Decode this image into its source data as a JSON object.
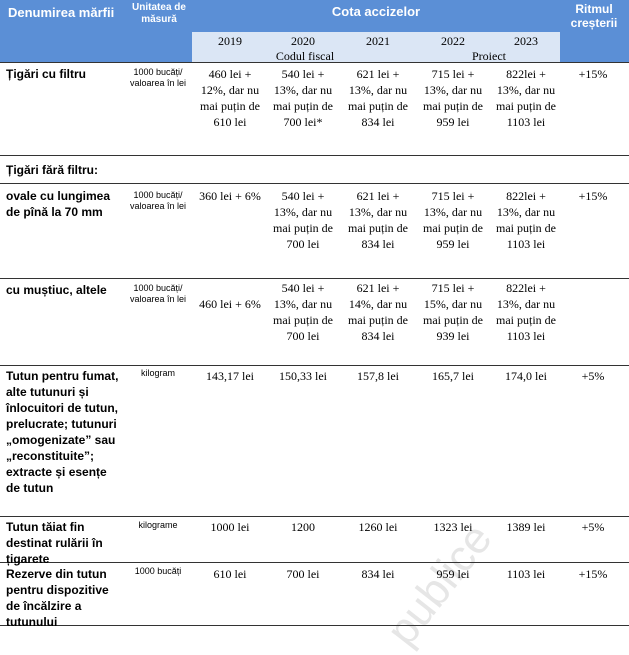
{
  "header": {
    "product": "Denumirea mărfii",
    "unit": "Unitatea de măsură",
    "rates": "Cota accizelor",
    "growth": "Ritmul creșterii",
    "years": [
      "2019",
      "2020",
      "2021",
      "2022",
      "2023"
    ],
    "fiscal_code": "Codul fiscal",
    "project": "Proiect"
  },
  "rows": [
    {
      "name": "Țigări cu filtru",
      "unit": "1000 bucăți/ valoarea în lei",
      "v": [
        "460 lei + 12%, dar nu mai puțin de 610 lei",
        "540 lei + 13%, dar nu mai puțin de 700 lei*",
        "621 lei + 13%, dar nu mai puțin de 834 lei",
        "715 lei + 13%, dar nu mai puțin de 959 lei",
        "822lei + 13%, dar nu mai puțin de 1103 lei"
      ],
      "rate": "+15%"
    },
    {
      "name": "Țigări fără filtru:",
      "unit": "",
      "v": [
        "",
        "",
        "",
        "",
        ""
      ],
      "rate": ""
    },
    {
      "name": "ovale cu lungimea de pînă la 70 mm",
      "unit": "1000 bucăți/ valoarea în lei",
      "v": [
        "360 lei + 6%",
        "540 lei + 13%, dar nu mai puțin de 700 lei",
        "621 lei + 13%, dar nu mai puțin de 834 lei",
        "715 lei + 13%, dar nu mai puțin de 959 lei",
        "822lei + 13%, dar nu mai puțin de 1103 lei"
      ],
      "rate": "+15%"
    },
    {
      "name": "cu muștiuc, altele",
      "unit": "1000 bucăți/ valoarea în lei",
      "v": [
        "460 lei + 6%",
        "540 lei + 13%, dar nu mai puțin de 700 lei",
        "621 lei + 14%, dar nu mai puțin de 834 lei",
        "715 lei + 15%, dar nu mai puțin de 939 lei",
        "822lei + 13%, dar nu mai puțin de 1103 lei"
      ],
      "rate": ""
    },
    {
      "name": "Tutun pentru fumat, alte tutunuri și înlocuitori de tutun, prelucrate; tutunuri „omogenizate” sau „reconstituite”; extracte și esențe de tutun",
      "unit": "kilogram",
      "v": [
        "143,17 lei",
        "150,33 lei",
        "157,8 lei",
        "165,7 lei",
        "174,0 lei"
      ],
      "rate": "+5%"
    },
    {
      "name": "Tutun tăiat fin destinat rulării în țigarete",
      "unit": "kilograme",
      "v": [
        "1000 lei",
        "1200",
        "1260 lei",
        "1323 lei",
        "1389 lei"
      ],
      "rate": "+5%"
    },
    {
      "name": "Rezerve din tutun pentru dispozitive de încălzire a tutunului",
      "unit": "1000 bucăți",
      "v": [
        "610 lei",
        "700 lei",
        "834 lei",
        "959 lei",
        "1103 lei"
      ],
      "rate": "+15%"
    }
  ]
}
